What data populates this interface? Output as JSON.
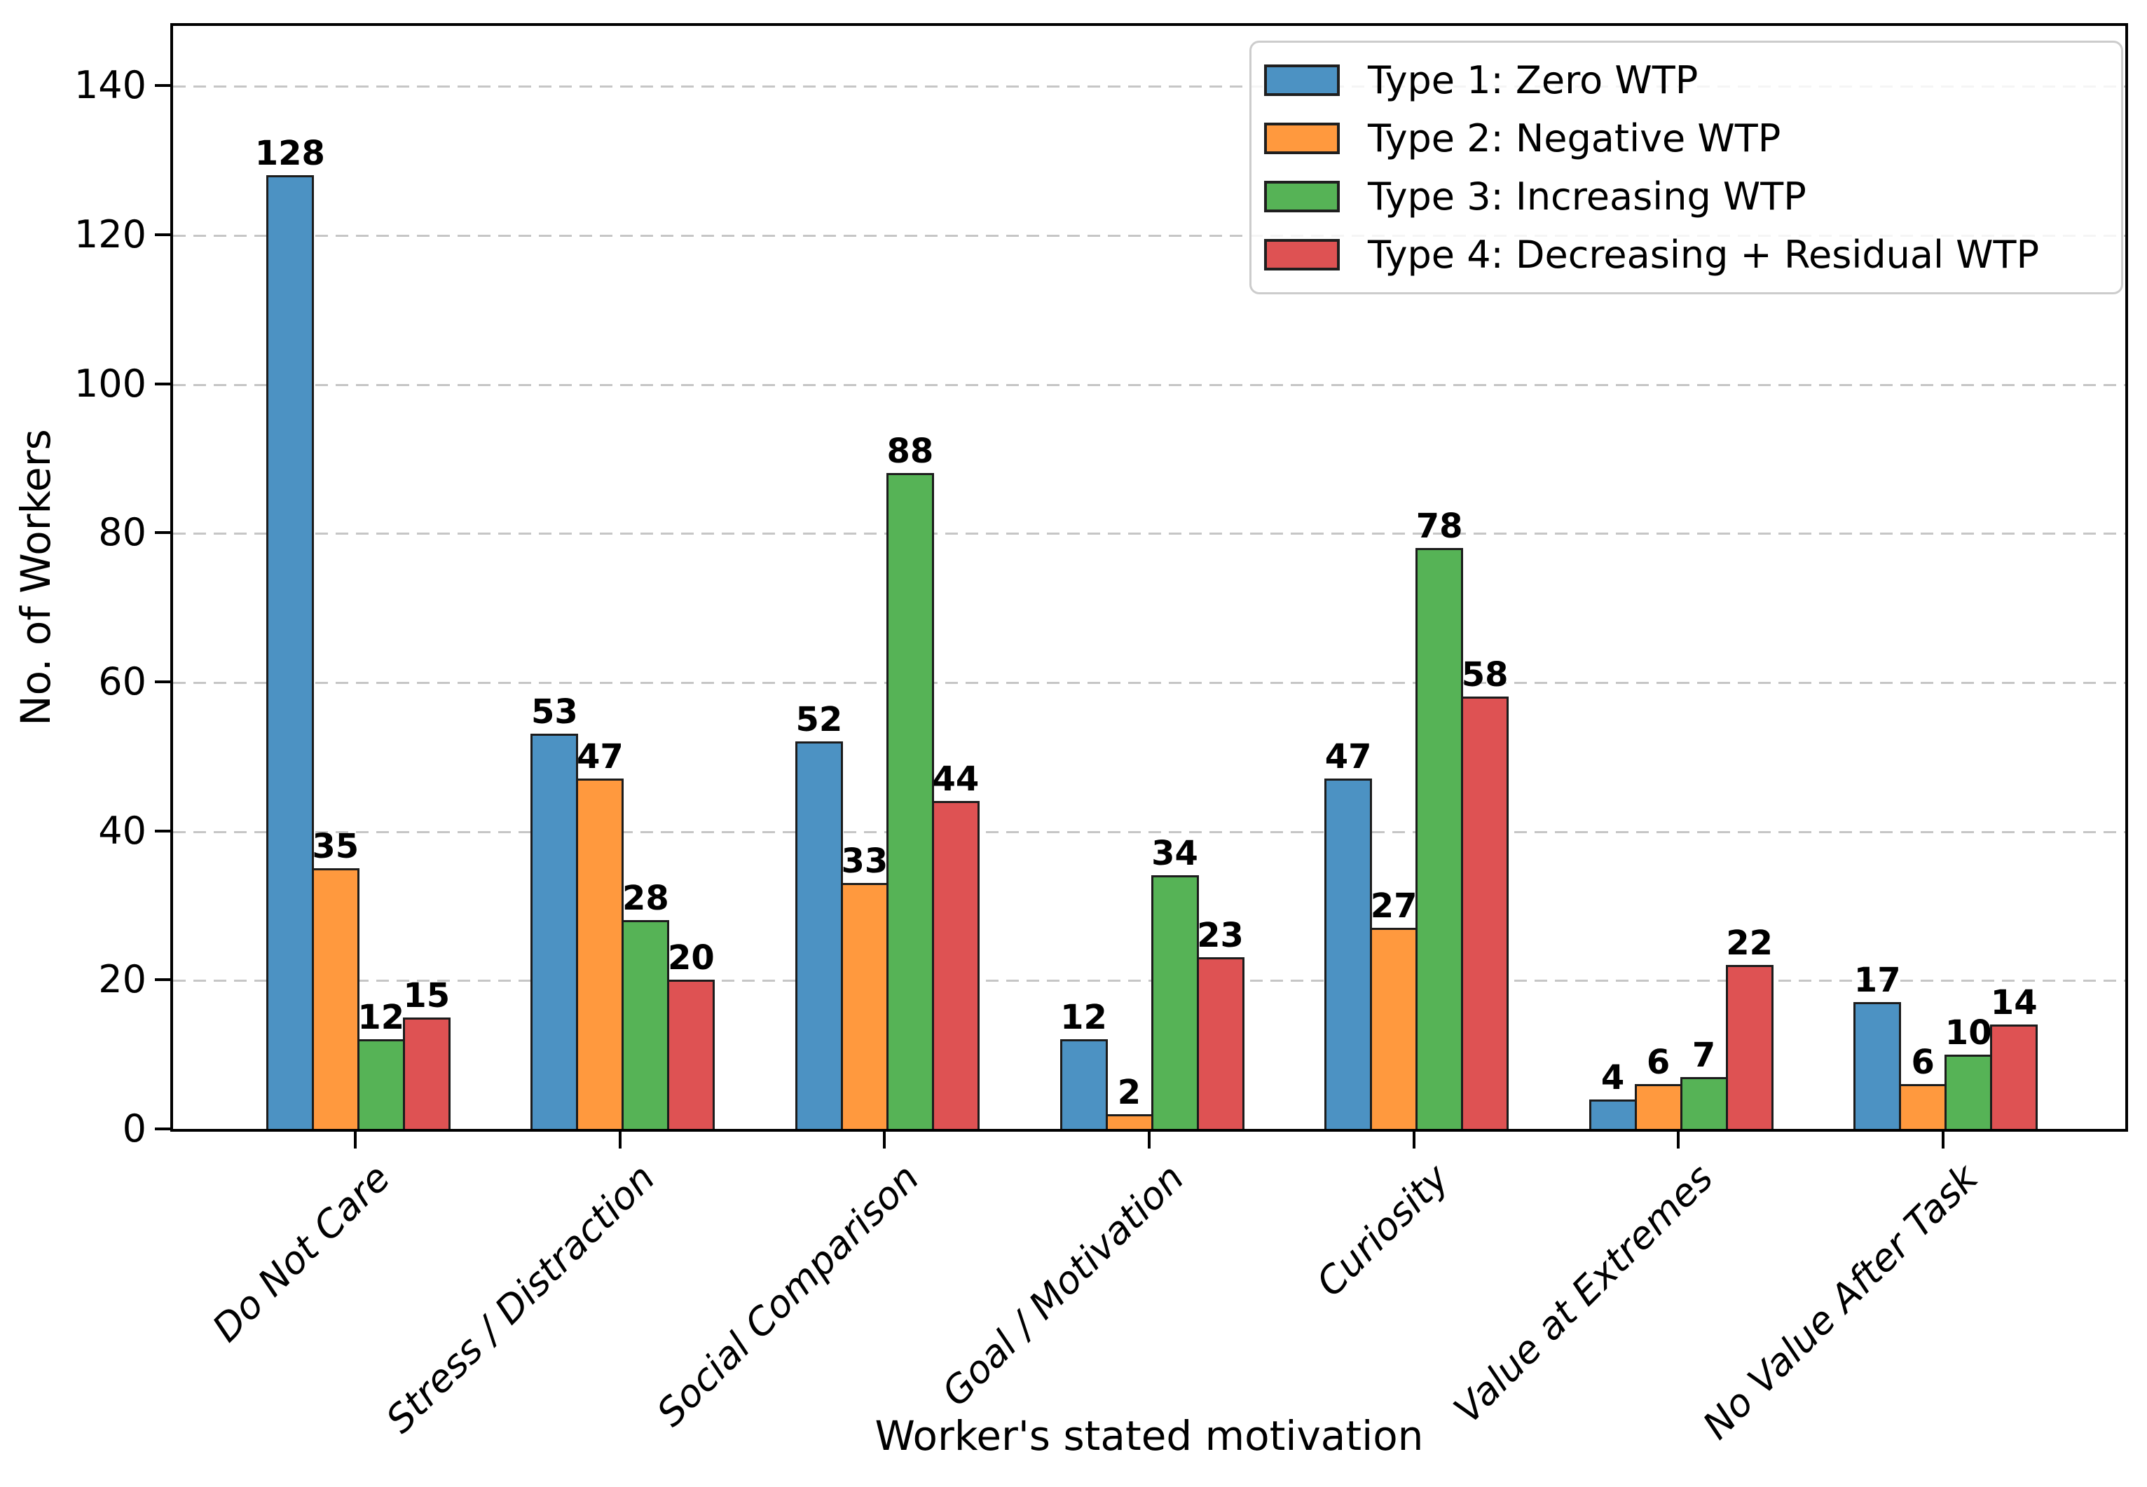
{
  "chart_data": {
    "type": "bar",
    "title": "",
    "xlabel": "Worker's stated motivation",
    "ylabel": "No. of Workers",
    "categories": [
      "Do Not Care",
      "Stress / Distraction",
      "Social Comparison",
      "Goal / Motivation",
      "Curiosity",
      "Value at Extremes",
      "No Value After Task"
    ],
    "series": [
      {
        "name": "Type 1: Zero WTP",
        "color": "#4C92C3",
        "values": [
          128,
          53,
          52,
          12,
          47,
          4,
          17
        ]
      },
      {
        "name": "Type 2: Negative WTP",
        "color": "#FF993E",
        "values": [
          35,
          47,
          33,
          2,
          27,
          6,
          6
        ]
      },
      {
        "name": "Type 3: Increasing WTP",
        "color": "#56B356",
        "values": [
          12,
          28,
          88,
          34,
          78,
          7,
          10
        ]
      },
      {
        "name": "Type 4: Decreasing + Residual WTP",
        "color": "#DE5253",
        "values": [
          15,
          20,
          44,
          23,
          58,
          22,
          14
        ]
      }
    ],
    "yticks": [
      0,
      20,
      40,
      60,
      80,
      100,
      120,
      140
    ],
    "ylim": [
      0,
      148
    ],
    "xlim": [
      -0.7,
      6.7
    ],
    "grid": true,
    "gridline_style": "dashed",
    "gridline_color": "#c6c6c6",
    "bar_edge_color": "#1c1c1c",
    "bar_value_labels": true,
    "legend": {
      "position": "upper right",
      "entries": [
        "Type 1: Zero WTP",
        "Type 2: Negative WTP",
        "Type 3: Increasing WTP",
        "Type 4: Decreasing + Residual WTP"
      ]
    }
  }
}
